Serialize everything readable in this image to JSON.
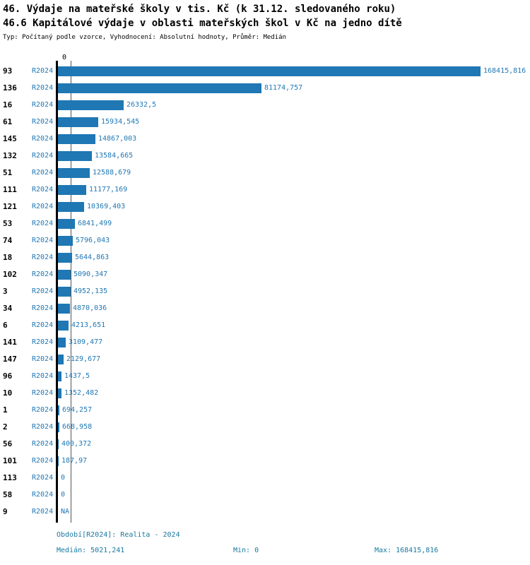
{
  "chart_data": {
    "type": "bar",
    "orientation": "horizontal",
    "title": "46. Výdaje na mateřské školy v tis. Kč (k 31.12. sledovaného roku)",
    "subtitle": "46.6 Kapitálové výdaje v oblasti mateřských škol v Kč na jedno dítě",
    "meta": "Typ: Počítaný podle vzorce, Vyhodnocení: Absolutní hodnoty, Průměr: Medián",
    "series_name": "R2024",
    "value_axis": {
      "zero_tick_label": "0",
      "min": 0,
      "max": 168415.816,
      "median": 5021.241
    },
    "colors": {
      "bar": "#1F77B4",
      "blue_text": "#1F77B4",
      "category_text": "#000000",
      "footer_text": "#1878A0",
      "axis": "#000000",
      "median_line": "#555555"
    },
    "rows": [
      {
        "category": "93",
        "period": "R2024",
        "value": 168415.816,
        "value_label": "168415,816"
      },
      {
        "category": "136",
        "period": "R2024",
        "value": 81174.757,
        "value_label": "81174,757"
      },
      {
        "category": "16",
        "period": "R2024",
        "value": 26332.5,
        "value_label": "26332,5"
      },
      {
        "category": "61",
        "period": "R2024",
        "value": 15934.545,
        "value_label": "15934,545"
      },
      {
        "category": "145",
        "period": "R2024",
        "value": 14867.003,
        "value_label": "14867,003"
      },
      {
        "category": "132",
        "period": "R2024",
        "value": 13584.665,
        "value_label": "13584,665"
      },
      {
        "category": "51",
        "period": "R2024",
        "value": 12588.679,
        "value_label": "12588,679"
      },
      {
        "category": "111",
        "period": "R2024",
        "value": 11177.169,
        "value_label": "11177,169"
      },
      {
        "category": "121",
        "period": "R2024",
        "value": 10369.403,
        "value_label": "10369,403"
      },
      {
        "category": "53",
        "period": "R2024",
        "value": 6841.499,
        "value_label": "6841,499"
      },
      {
        "category": "74",
        "period": "R2024",
        "value": 5796.043,
        "value_label": "5796,043"
      },
      {
        "category": "18",
        "period": "R2024",
        "value": 5644.863,
        "value_label": "5644,863"
      },
      {
        "category": "102",
        "period": "R2024",
        "value": 5090.347,
        "value_label": "5090,347"
      },
      {
        "category": "3",
        "period": "R2024",
        "value": 4952.135,
        "value_label": "4952,135"
      },
      {
        "category": "34",
        "period": "R2024",
        "value": 4870.036,
        "value_label": "4870,036"
      },
      {
        "category": "6",
        "period": "R2024",
        "value": 4213.651,
        "value_label": "4213,651"
      },
      {
        "category": "141",
        "period": "R2024",
        "value": 3109.477,
        "value_label": "3109,477"
      },
      {
        "category": "147",
        "period": "R2024",
        "value": 2129.677,
        "value_label": "2129,677"
      },
      {
        "category": "96",
        "period": "R2024",
        "value": 1437.5,
        "value_label": "1437,5"
      },
      {
        "category": "10",
        "period": "R2024",
        "value": 1352.482,
        "value_label": "1352,482"
      },
      {
        "category": "1",
        "period": "R2024",
        "value": 694.257,
        "value_label": "694,257"
      },
      {
        "category": "2",
        "period": "R2024",
        "value": 668.958,
        "value_label": "668,958"
      },
      {
        "category": "56",
        "period": "R2024",
        "value": 400.372,
        "value_label": "400,372"
      },
      {
        "category": "101",
        "period": "R2024",
        "value": 187.97,
        "value_label": "187,97"
      },
      {
        "category": "113",
        "period": "R2024",
        "value": 0,
        "value_label": "0"
      },
      {
        "category": "58",
        "period": "R2024",
        "value": 0,
        "value_label": "0"
      },
      {
        "category": "9",
        "period": "R2024",
        "value": null,
        "value_label": "NA"
      }
    ],
    "footer": {
      "period_label": "Období[R2024]: Realita - 2024",
      "median_label": "Medián: 5021,241",
      "min_label": "Min: 0",
      "max_label": "Max: 168415,816"
    }
  }
}
